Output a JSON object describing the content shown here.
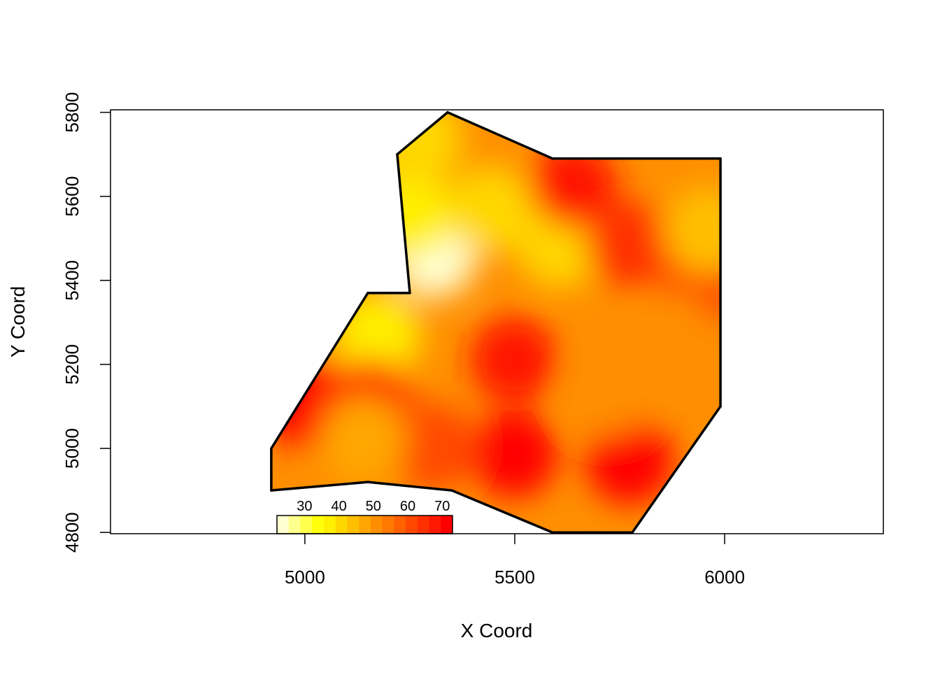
{
  "chart_data": {
    "type": "heatmap",
    "xlabel": "X Coord",
    "ylabel": "Y Coord",
    "xlim": [
      4537,
      6378
    ],
    "ylim": [
      4797,
      5806
    ],
    "xticks": [
      5000,
      5500,
      6000
    ],
    "yticks": [
      4800,
      5000,
      5200,
      5400,
      5600,
      5800
    ],
    "boundary": [
      [
        5340,
        5800
      ],
      [
        5590,
        5690
      ],
      [
        5990,
        5690
      ],
      [
        5990,
        5100
      ],
      [
        5780,
        4800
      ],
      [
        5590,
        4800
      ],
      [
        5350,
        4900
      ],
      [
        5150,
        4920
      ],
      [
        4920,
        4900
      ],
      [
        4920,
        5000
      ],
      [
        5150,
        5370
      ],
      [
        5250,
        5370
      ],
      [
        5220,
        5700
      ]
    ],
    "field_color": "#FF8F00",
    "hotspots": [
      {
        "x": 5307,
        "y": 5461,
        "value": 25
      },
      {
        "x": 5250,
        "y": 5560,
        "value": 38
      },
      {
        "x": 5173,
        "y": 5269,
        "value": 38
      },
      {
        "x": 5607,
        "y": 5486,
        "value": 40
      },
      {
        "x": 5440,
        "y": 5569,
        "value": 40
      },
      {
        "x": 5273,
        "y": 5735,
        "value": 42
      },
      {
        "x": 5640,
        "y": 5627,
        "value": 68
      },
      {
        "x": 5773,
        "y": 5486,
        "value": 65
      },
      {
        "x": 5498,
        "y": 5211,
        "value": 68
      },
      {
        "x": 5007,
        "y": 5103,
        "value": 70
      },
      {
        "x": 5157,
        "y": 5111,
        "value": 65
      },
      {
        "x": 5498,
        "y": 4986,
        "value": 70
      },
      {
        "x": 5773,
        "y": 4970,
        "value": 72
      },
      {
        "x": 5940,
        "y": 5386,
        "value": 62
      },
      {
        "x": 5307,
        "y": 5003,
        "value": 62
      },
      {
        "x": 5723,
        "y": 5136,
        "value": 50
      },
      {
        "x": 5957,
        "y": 5519,
        "value": 45
      },
      {
        "x": 5140,
        "y": 5020,
        "value": 48
      },
      {
        "x": 5873,
        "y": 5269,
        "value": 50
      }
    ],
    "zlim": [
      22,
      73
    ],
    "zticks": [
      30,
      40,
      50,
      60,
      70
    ],
    "colors": [
      "#FFFFD1",
      "#FFFF8F",
      "#FFFF4D",
      "#FFFF0B",
      "#FFEF00",
      "#FFD700",
      "#FFBF00",
      "#FFA700",
      "#FF8F00",
      "#FF7800",
      "#FF6000",
      "#FF4800",
      "#FF3000",
      "#FF1800",
      "#FF0000"
    ]
  }
}
